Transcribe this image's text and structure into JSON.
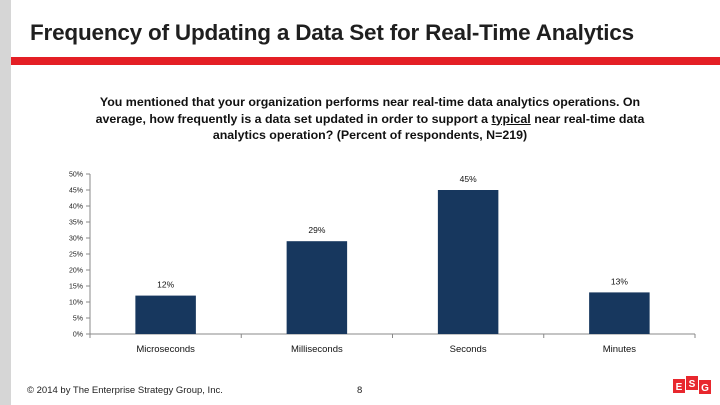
{
  "slide": {
    "title": "Frequency  of Updating a Data Set for Real-Time Analytics",
    "question_part1": "You mentioned that your organization performs near real-time data analytics operations. On average, how frequently is a data set updated in order to support a ",
    "question_underlined": "typical",
    "question_part2": " near real-time data analytics operation? (Percent of respondents, N=219)"
  },
  "footer": {
    "copyright": "© 2014 by The Enterprise Strategy Group, Inc.",
    "page_number": "8",
    "logo_text": "ESG"
  },
  "colors": {
    "bar": "#17375e",
    "title_rule": "#e41f25",
    "left_band": "#d6d6d6",
    "logo": "#e8282e"
  },
  "chart_data": {
    "type": "bar",
    "categories": [
      "Microseconds",
      "Milliseconds",
      "Seconds",
      "Minutes"
    ],
    "values": [
      12,
      29,
      45,
      13
    ],
    "value_labels": [
      "12%",
      "29%",
      "45%",
      "13%"
    ],
    "ylim": [
      0,
      50
    ],
    "yticks": [
      0,
      5,
      10,
      15,
      20,
      25,
      30,
      35,
      40,
      45,
      50
    ],
    "ytick_labels": [
      "0%",
      "5%",
      "10%",
      "15%",
      "20%",
      "25%",
      "30%",
      "35%",
      "40%",
      "45%",
      "50%"
    ],
    "grid": false,
    "legend": "none"
  }
}
